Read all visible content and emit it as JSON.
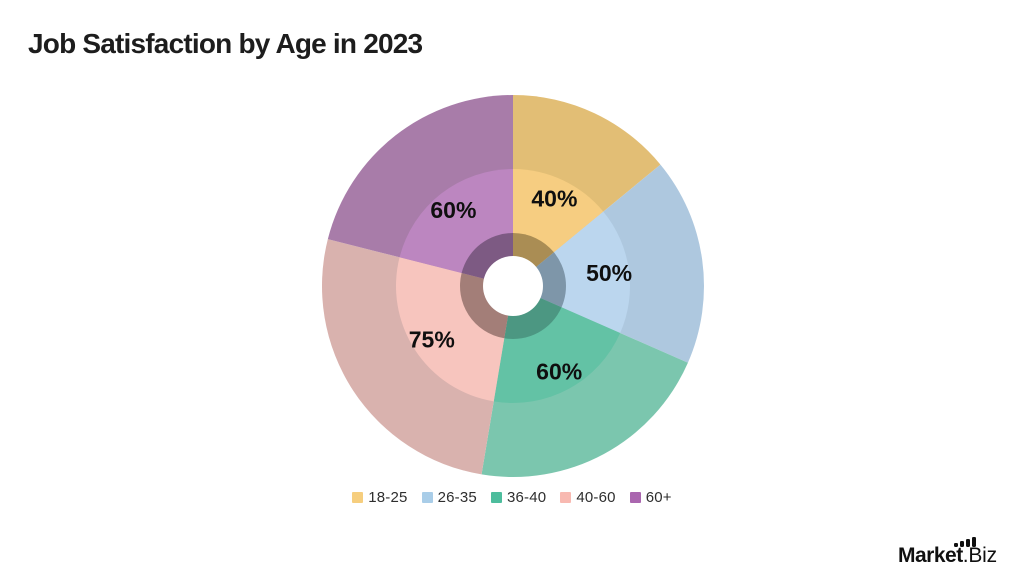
{
  "header": {
    "title": "Job Satisfaction by Age in 2023",
    "title_color": "#1d1d1d"
  },
  "chart_data": {
    "type": "pie",
    "variant": "three-ring sunburst donut; slice angles proportional to values; starts at 12 o'clock, clockwise",
    "title": "Job Satisfaction by Age in 2023",
    "unit": "%",
    "categories": [
      "18-25",
      "26-35",
      "36-40",
      "40-60",
      "60+"
    ],
    "values": [
      40,
      50,
      60,
      75,
      60
    ],
    "labels": [
      "40%",
      "50%",
      "60%",
      "75%",
      "60%"
    ],
    "legend_position": "bottom",
    "label_color": "#0f0f0f",
    "hole_color": "#ffffff",
    "segments": [
      {
        "category": "18-25",
        "value": 40,
        "display": "40%",
        "legend_color": "#f6ce7e",
        "outer_color": "#e2be75",
        "mid_color": "#f6cd81",
        "inner_color": "#aa8d54"
      },
      {
        "category": "26-35",
        "value": 50,
        "display": "50%",
        "legend_color": "#a9cde8",
        "outer_color": "#aec8df",
        "mid_color": "#bbd6ee",
        "inner_color": "#7e96a9"
      },
      {
        "category": "36-40",
        "value": 60,
        "display": "60%",
        "legend_color": "#4dbd9d",
        "outer_color": "#7bc6ae",
        "mid_color": "#63c2a5",
        "inner_color": "#4c9782"
      },
      {
        "category": "40-60",
        "value": 75,
        "display": "75%",
        "legend_color": "#f8b9b1",
        "outer_color": "#d9b2ae",
        "mid_color": "#f7c5be",
        "inner_color": "#a37e78"
      },
      {
        "category": "60+",
        "value": 60,
        "display": "60%",
        "legend_color": "#aa66af",
        "outer_color": "#a87ca9",
        "mid_color": "#bc86c0",
        "inner_color": "#7d5a83"
      }
    ]
  },
  "legend": {
    "text_color": "#2e2e2e"
  },
  "footer_logo": {
    "text_bold": "Market",
    "text_light": ".Biz",
    "icon": "bar-chart-icon",
    "color": "#101010"
  }
}
